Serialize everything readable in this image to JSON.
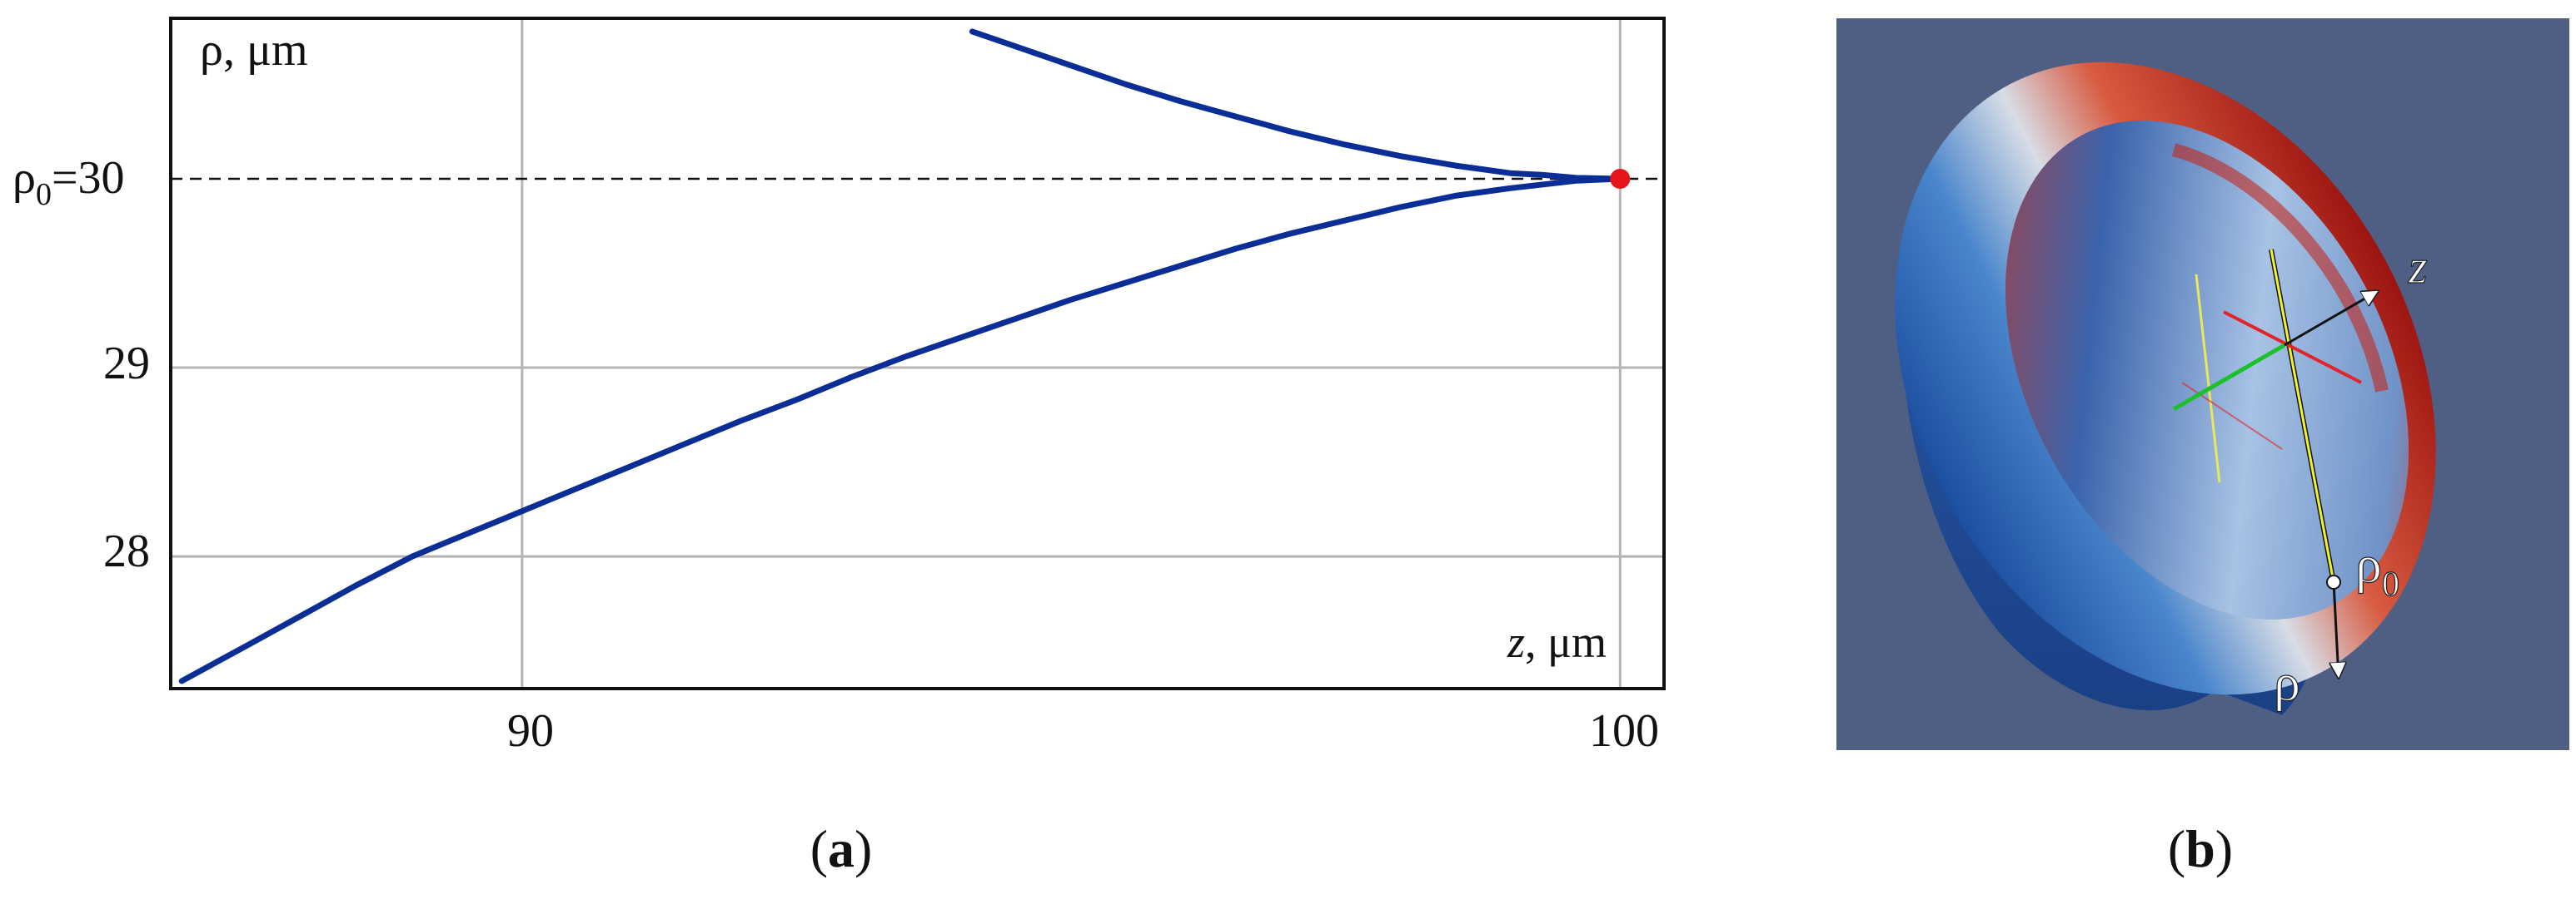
{
  "panel_a": {
    "caption_open": "(",
    "caption_letter": "a",
    "caption_close": ")",
    "ylabel": "ρ, μm",
    "xlabel_var": "z",
    "xlabel_unit": ", μm",
    "ref_label_base": "ρ",
    "ref_label_sub": "0",
    "ref_label_value": "=30",
    "yticks": [
      "29",
      "28"
    ],
    "xticks": [
      "90",
      "100"
    ]
  },
  "panel_b": {
    "caption_open": "(",
    "caption_letter": "b",
    "caption_close": ")",
    "z_label": "z",
    "rho_label": "ρ",
    "rho0_base": "ρ",
    "rho0_sub": "0"
  },
  "chart_data": {
    "type": "line",
    "title": "",
    "xlabel": "z, μm",
    "ylabel": "ρ, μm",
    "xlim": [
      86.8,
      100.4
    ],
    "ylim": [
      27.3,
      30.85
    ],
    "xticks": [
      90,
      100
    ],
    "yticks": [
      28,
      29,
      30
    ],
    "grid": true,
    "reference_line": {
      "y": 30,
      "style": "dashed",
      "label": "ρ0=30"
    },
    "marked_point": {
      "x": 100,
      "y": 30,
      "color": "#e8141c"
    },
    "series": [
      {
        "color": "#0a2e96",
        "x": [
          86.9,
          87.5,
          88.0,
          88.5,
          89.0,
          89.5,
          90.0,
          90.5,
          91.0,
          91.5,
          92.0,
          92.5,
          93.0,
          93.5,
          94.0,
          94.5,
          95.0,
          95.5,
          96.0,
          96.5,
          97.0,
          97.5,
          98.0,
          98.5,
          99.0,
          99.3,
          99.6,
          99.8,
          100.0
        ],
        "y": [
          27.34,
          27.53,
          27.69,
          27.85,
          28.0,
          28.12,
          28.24,
          28.36,
          28.48,
          28.6,
          28.72,
          28.83,
          28.95,
          29.06,
          29.16,
          29.26,
          29.36,
          29.45,
          29.54,
          29.63,
          29.71,
          29.78,
          29.85,
          29.91,
          29.95,
          29.97,
          29.99,
          29.995,
          30.0
        ]
      },
      {
        "color": "#0a2e96",
        "x": [
          94.1,
          94.5,
          95.0,
          95.5,
          96.0,
          96.5,
          97.0,
          97.5,
          98.0,
          98.5,
          99.0,
          99.3,
          99.6,
          100.0
        ],
        "y": [
          30.78,
          30.7,
          30.6,
          30.5,
          30.41,
          30.33,
          30.25,
          30.18,
          30.12,
          30.07,
          30.03,
          30.02,
          30.005,
          30.0
        ]
      }
    ]
  }
}
